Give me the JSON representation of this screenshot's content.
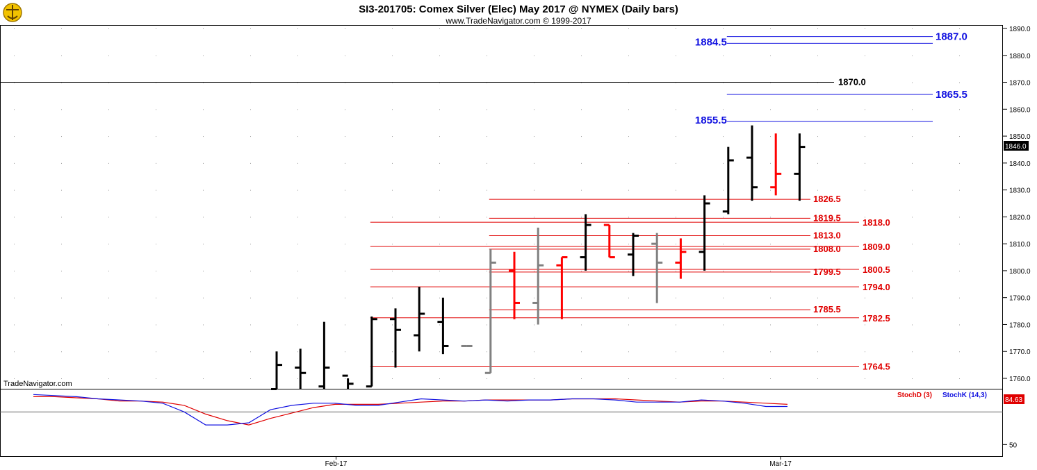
{
  "header": {
    "title": "SI3-201705:  Comex Silver (Elec) May 2017 @ NYMEX  (Daily bars)",
    "subtitle": "www.TradeNavigator.com © 1999-2017"
  },
  "watermark": "TradeNavigator.com",
  "colors": {
    "up_bar": "#000000",
    "down_bar": "#ff0000",
    "neutral_bar": "#808080",
    "red_level": "#e00000",
    "blue_level": "#1010e0",
    "stoch_d": "#e00000",
    "stoch_k": "#1010e0"
  },
  "price_axis": {
    "ticks": [
      "1890.0",
      "1880.0",
      "1870.0",
      "1860.0",
      "1850.0",
      "1840.0",
      "1830.0",
      "1820.0",
      "1810.0",
      "1800.0",
      "1790.0",
      "1780.0",
      "1770.0",
      "1760.0"
    ],
    "last_price": "1846.0"
  },
  "chart_data": {
    "type": "ohlc",
    "title": "SI3-201705:  Comex Silver (Elec) May 2017 @ NYMEX  (Daily bars)",
    "ylim": [
      1756,
      1892
    ],
    "x_labels": [
      {
        "label": "Feb-17",
        "index": 2.5
      },
      {
        "label": "Mar-17",
        "index": 21.2
      }
    ],
    "bars": [
      {
        "o": 1756,
        "h": 1770,
        "l": 1756,
        "c": 1765,
        "color": "up"
      },
      {
        "o": 1764,
        "h": 1771,
        "l": 1756,
        "c": 1762,
        "color": "up"
      },
      {
        "o": 1757,
        "h": 1781,
        "l": 1756,
        "c": 1764,
        "color": "up"
      },
      {
        "o": 1761,
        "h": 1760,
        "l": 1756,
        "c": 1758,
        "color": "up"
      },
      {
        "o": 1757,
        "h": 1783,
        "l": 1757,
        "c": 1782,
        "color": "up"
      },
      {
        "o": 1782,
        "h": 1786,
        "l": 1764,
        "c": 1778,
        "color": "up"
      },
      {
        "o": 1776,
        "h": 1794,
        "l": 1770,
        "c": 1784,
        "color": "up"
      },
      {
        "o": 1781,
        "h": 1790,
        "l": 1769,
        "c": 1772,
        "color": "up"
      },
      {
        "o": 1772,
        "h": 1772,
        "l": 1772,
        "c": 1772,
        "color": "neutral"
      },
      {
        "o": 1762,
        "h": 1808,
        "l": 1762,
        "c": 1803,
        "color": "neutral"
      },
      {
        "o": 1800,
        "h": 1807,
        "l": 1782,
        "c": 1788,
        "color": "down"
      },
      {
        "o": 1788,
        "h": 1816,
        "l": 1780,
        "c": 1802,
        "color": "neutral"
      },
      {
        "o": 1802,
        "h": 1805,
        "l": 1782,
        "c": 1805,
        "color": "down"
      },
      {
        "o": 1805,
        "h": 1821,
        "l": 1800,
        "c": 1817,
        "color": "up"
      },
      {
        "o": 1817,
        "h": 1817,
        "l": 1805,
        "c": 1805,
        "color": "down"
      },
      {
        "o": 1806,
        "h": 1814,
        "l": 1798,
        "c": 1813,
        "color": "up"
      },
      {
        "o": 1810,
        "h": 1814,
        "l": 1788,
        "c": 1803,
        "color": "neutral"
      },
      {
        "o": 1803,
        "h": 1812,
        "l": 1797,
        "c": 1807,
        "color": "down"
      },
      {
        "o": 1807,
        "h": 1828,
        "l": 1800,
        "c": 1825,
        "color": "up"
      },
      {
        "o": 1822,
        "h": 1846,
        "l": 1821,
        "c": 1841,
        "color": "up"
      },
      {
        "o": 1842,
        "h": 1854,
        "l": 1826,
        "c": 1831,
        "color": "up"
      },
      {
        "o": 1831,
        "h": 1851,
        "l": 1828,
        "c": 1836,
        "color": "down"
      },
      {
        "o": 1836,
        "h": 1851,
        "l": 1826,
        "c": 1846,
        "color": "up"
      }
    ],
    "levels": [
      {
        "value": 1887.0,
        "label": "1887.0",
        "color": "blue",
        "from_index": 19,
        "side": "right"
      },
      {
        "value": 1884.5,
        "label": "1884.5",
        "color": "blue",
        "from_index": 19,
        "side": "left"
      },
      {
        "value": 1870.0,
        "label": "1870.0",
        "color": "black",
        "from_index": -1,
        "side": "mid"
      },
      {
        "value": 1865.5,
        "label": "1865.5",
        "color": "blue",
        "from_index": 19,
        "side": "right"
      },
      {
        "value": 1855.5,
        "label": "1855.5",
        "color": "blue",
        "from_index": 19,
        "side": "left"
      },
      {
        "value": 1826.5,
        "label": "1826.5",
        "color": "red",
        "from_index": 9,
        "side": "mid"
      },
      {
        "value": 1819.5,
        "label": "1819.5",
        "color": "red",
        "from_index": 9,
        "side": "mid"
      },
      {
        "value": 1818.0,
        "label": "1818.0",
        "color": "red",
        "from_index": 4,
        "side": "right"
      },
      {
        "value": 1813.0,
        "label": "1813.0",
        "color": "red",
        "from_index": 9,
        "side": "mid"
      },
      {
        "value": 1809.0,
        "label": "1809.0",
        "color": "red",
        "from_index": 4,
        "side": "right"
      },
      {
        "value": 1808.0,
        "label": "1808.0",
        "color": "red",
        "from_index": 9,
        "side": "mid"
      },
      {
        "value": 1800.5,
        "label": "1800.5",
        "color": "red",
        "from_index": 4,
        "side": "right"
      },
      {
        "value": 1799.5,
        "label": "1799.5",
        "color": "red",
        "from_index": 9,
        "side": "mid"
      },
      {
        "value": 1794.0,
        "label": "1794.0",
        "color": "red",
        "from_index": 4,
        "side": "right"
      },
      {
        "value": 1785.5,
        "label": "1785.5",
        "color": "red",
        "from_index": 9,
        "side": "mid"
      },
      {
        "value": 1782.5,
        "label": "1782.5",
        "color": "red",
        "from_index": 4,
        "side": "right"
      },
      {
        "value": 1764.5,
        "label": "1764.5",
        "color": "red",
        "from_index": 4,
        "side": "right"
      }
    ],
    "stochastic": {
      "ylim": [
        40,
        100
      ],
      "ticks": [
        "50"
      ],
      "last_value": "84.63",
      "legend": [
        {
          "label": "StochD (3)",
          "color": "red"
        },
        {
          "label": "StochK (14,3)",
          "color": "blue"
        }
      ],
      "k_values": [
        96,
        95,
        94,
        92,
        91,
        90,
        88,
        80,
        68,
        68,
        70,
        82,
        86,
        88,
        88,
        86,
        86,
        89,
        92,
        91,
        90,
        91,
        90,
        91,
        91,
        92,
        92,
        91,
        89,
        89,
        89,
        91,
        90,
        88,
        85,
        85
      ],
      "d_values": [
        94,
        94,
        93,
        92,
        90,
        90,
        89,
        86,
        78,
        72,
        68,
        74,
        79,
        84,
        87,
        87,
        87,
        88,
        89,
        90,
        90,
        91,
        91,
        91,
        91,
        92,
        92,
        92,
        91,
        90,
        89,
        90,
        90,
        89,
        88,
        87
      ]
    }
  }
}
